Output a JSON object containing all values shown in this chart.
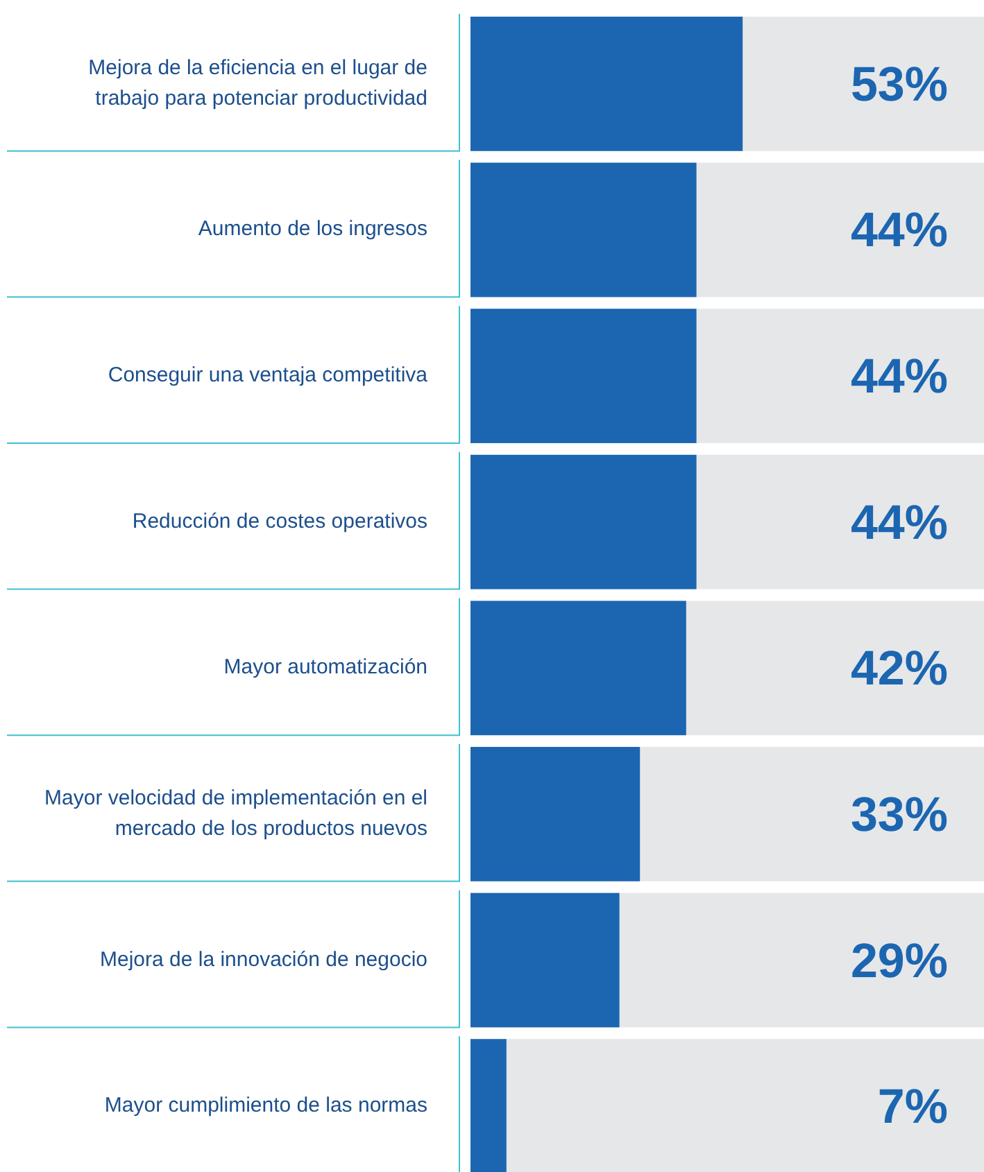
{
  "chart_data": {
    "type": "bar",
    "orientation": "horizontal",
    "categories": [
      "Mejora de la eficiencia en el lugar de trabajo para potenciar productividad",
      "Aumento de los ingresos",
      "Conseguir una ventaja competitiva",
      "Reducción de costes operativos",
      "Mayor automatización",
      "Mayor velocidad de implementación en el mercado de los productos nuevos",
      "Mejora de la innovación de negocio",
      "Mayor cumplimiento de las normas"
    ],
    "values": [
      53,
      44,
      44,
      44,
      42,
      33,
      29,
      7
    ],
    "value_labels": [
      "53%",
      "44%",
      "44%",
      "44%",
      "42%",
      "33%",
      "29%",
      "7%"
    ],
    "color": "#1c66b1",
    "xlim": [
      0,
      100
    ],
    "tick_labels": "y"
  }
}
